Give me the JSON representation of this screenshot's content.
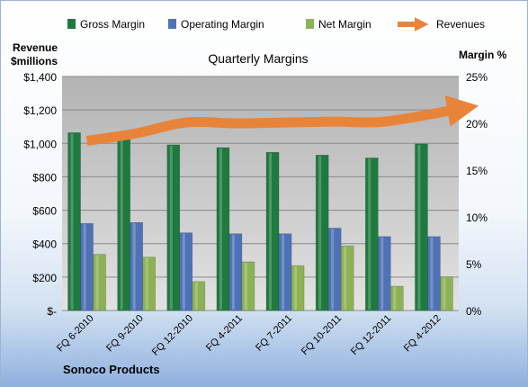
{
  "chart_data": {
    "type": "bar",
    "title": "Quarterly Margins",
    "company": "Sonoco Products",
    "left_axis": {
      "label_line1": "Revenue",
      "label_line2": "$millions",
      "range": [
        0,
        1400
      ],
      "ticks": [
        "$-",
        "$200",
        "$400",
        "$600",
        "$800",
        "$1,000",
        "$1,200",
        "$1,400"
      ]
    },
    "right_axis": {
      "label": "Margin %",
      "range": [
        0,
        25
      ],
      "ticks": [
        "0%",
        "5%",
        "10%",
        "15%",
        "20%",
        "25%"
      ]
    },
    "categories": [
      "FQ 6-2010",
      "FQ 9-2010",
      "FQ 12-2010",
      "FQ 4-2011",
      "FQ 7-2011",
      "FQ 10-2011",
      "FQ 12-2011",
      "FQ 4-2012"
    ],
    "series": [
      {
        "name": "Gross Margin",
        "axis": "right",
        "kind": "bar",
        "color": "#1e7a3e",
        "values": [
          19.0,
          18.9,
          17.7,
          17.4,
          16.9,
          16.6,
          16.3,
          17.8
        ]
      },
      {
        "name": "Operating Margin",
        "axis": "right",
        "kind": "bar",
        "color": "#4f72b6",
        "values": [
          9.3,
          9.4,
          8.3,
          8.2,
          8.2,
          8.8,
          7.9,
          7.9
        ]
      },
      {
        "name": "Net Margin",
        "axis": "right",
        "kind": "bar",
        "color": "#8db255",
        "values": [
          6.0,
          5.7,
          3.1,
          5.2,
          4.8,
          6.9,
          2.6,
          3.6
        ]
      },
      {
        "name": "Revenues",
        "axis": "left",
        "kind": "line",
        "color": "#e8843a",
        "values": [
          1015,
          1060,
          1125,
          1120,
          1125,
          1130,
          1130,
          1200
        ]
      }
    ],
    "grid": true,
    "legend_position": "top"
  }
}
